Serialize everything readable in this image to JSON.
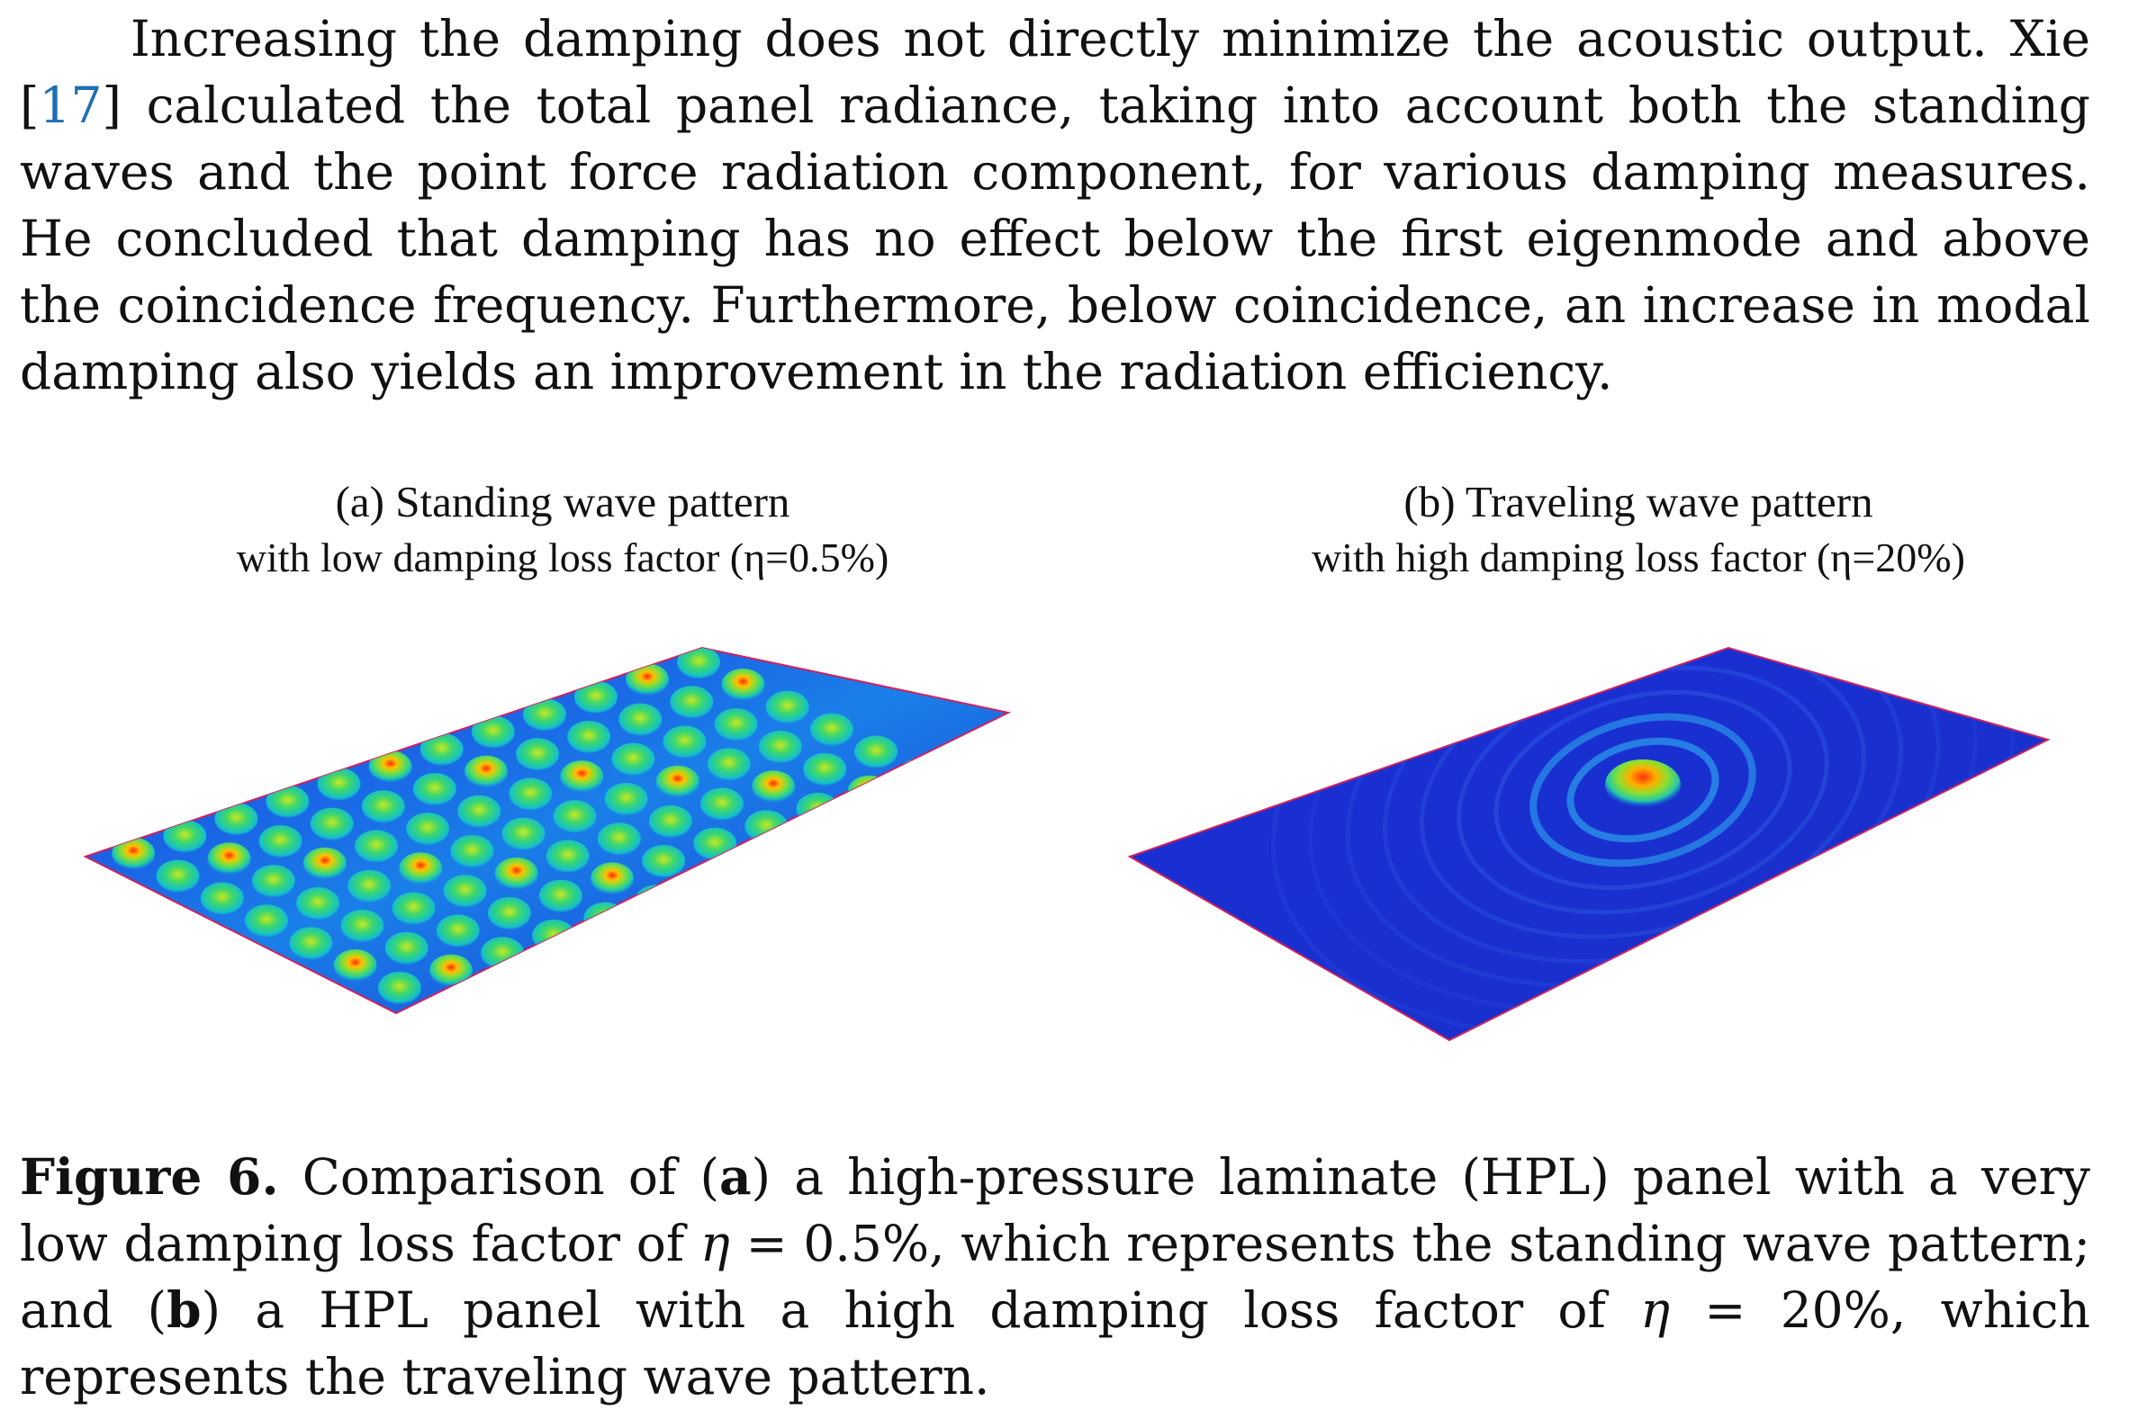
{
  "paragraph": {
    "text_before": "Increasing the damping does not directly minimize the acoustic output. Xie [",
    "citation": "17",
    "text_after": "] calculated the total panel radiance, taking into account both the standing waves and the point force radiation component, for various damping measures. He concluded that damping has no effect below the first eigenmode and above the coincidence frequency. Furthermore, below coincidence, an increase in modal damping also yields an improvement in the radiation efficiency."
  },
  "panels": [
    {
      "title": "(a) Standing wave pattern",
      "subtitle": "with low damping loss factor (η=0.5%)"
    },
    {
      "title": "(b) Traveling wave pattern",
      "subtitle": "with high damping loss factor (η=20%)"
    }
  ],
  "caption": {
    "label": "Figure 6.",
    "t1": " Comparison of (",
    "a": "a",
    "t2": ") a high-pressure laminate (HPL) panel with a very low damping loss factor of ",
    "eta1": "η",
    "eq1": " = 0.5%, which represents the standing wave pattern; and (",
    "b": "b",
    "t3": ") a HPL panel with a high damping loss factor of ",
    "eta2": "η",
    "eq2": " = 20%, which represents the traveling wave pattern."
  },
  "colors": {
    "text": "#111111",
    "citation": "#1f6fb2",
    "panel_base": "#1a2fd6",
    "panel_edge": "#d02060"
  }
}
